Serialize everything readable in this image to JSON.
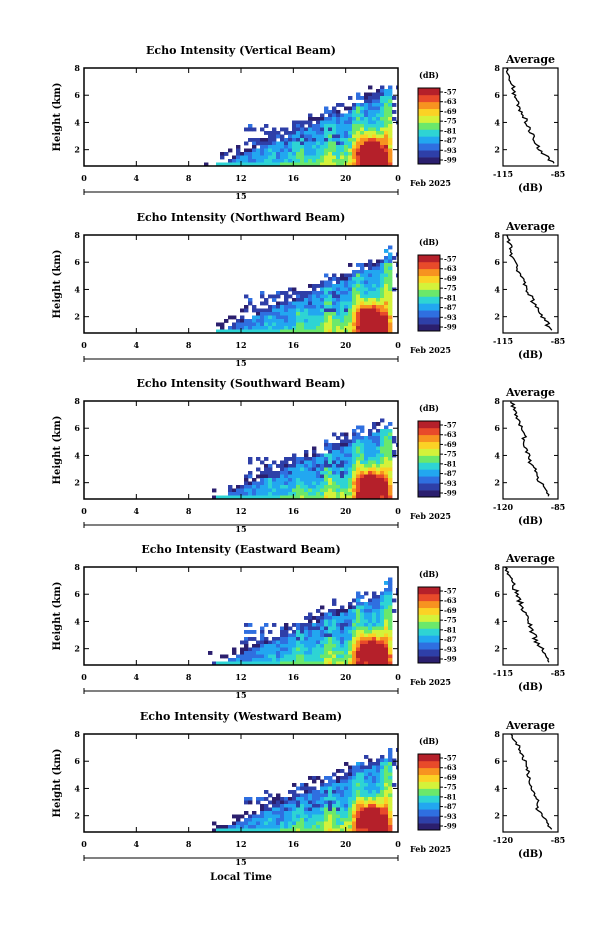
{
  "figure": {
    "xlabel": "Local Time",
    "colorbar_unit": "(dB)",
    "colorbar_ticks": [
      "-57",
      "-63",
      "-69",
      "-75",
      "-81",
      "-87",
      "-93",
      "-99"
    ],
    "colormap": [
      "#2b1f6e",
      "#2e3fa8",
      "#2f6fe0",
      "#22a7f0",
      "#2ed4d4",
      "#6be86b",
      "#d4f23a",
      "#fbd225",
      "#f79320",
      "#e84a2a",
      "#b5202a"
    ],
    "date_label": "Feb 2025"
  },
  "chart_data": [
    {
      "type": "heatmap",
      "title": "Echo Intensity (Vertical Beam)",
      "ylabel": "Height (km)",
      "x_ticks": [
        "0",
        "4",
        "8",
        "12",
        "16",
        "20",
        "0"
      ],
      "x_day_tick": "15",
      "xlim": [
        0,
        24
      ],
      "ylim": [
        0.8,
        8
      ],
      "y_ticks": [
        "2",
        "4",
        "6",
        "8"
      ],
      "profile": {
        "title": "Average",
        "xlabel": "(dB)",
        "x_ticks": [
          "-115",
          "-85"
        ],
        "xlim": [
          -115,
          -85
        ],
        "y": [
          1,
          1.5,
          2,
          2.5,
          3,
          3.5,
          4,
          4.5,
          5,
          5.5,
          6,
          6.5,
          7,
          7.5,
          8
        ],
        "x": [
          -88,
          -91,
          -95,
          -97,
          -98,
          -101,
          -102,
          -104,
          -106,
          -107,
          -109,
          -109,
          -110,
          -112,
          -113
        ]
      }
    },
    {
      "type": "heatmap",
      "title": "Echo Intensity (Northward Beam)",
      "ylabel": "Height (km)",
      "x_ticks": [
        "0",
        "4",
        "8",
        "12",
        "16",
        "20",
        "0"
      ],
      "x_day_tick": "15",
      "xlim": [
        0,
        24
      ],
      "ylim": [
        0.8,
        8
      ],
      "y_ticks": [
        "2",
        "4",
        "6",
        "8"
      ],
      "profile": {
        "title": "Average",
        "xlabel": "(dB)",
        "x_ticks": [
          "-115",
          "-85"
        ],
        "xlim": [
          -115,
          -85
        ],
        "y": [
          1,
          1.5,
          2,
          2.5,
          3,
          3.5,
          4,
          4.5,
          5,
          5.5,
          6,
          6.5,
          7,
          7.5,
          8
        ],
        "x": [
          -89,
          -91,
          -94,
          -96,
          -98,
          -100,
          -102,
          -103,
          -105,
          -107,
          -108,
          -110,
          -111,
          -112,
          -113
        ]
      }
    },
    {
      "type": "heatmap",
      "title": "Echo Intensity (Southward Beam)",
      "ylabel": "Height (km)",
      "x_ticks": [
        "0",
        "4",
        "8",
        "12",
        "16",
        "20",
        "0"
      ],
      "x_day_tick": "15",
      "xlim": [
        0,
        24
      ],
      "ylim": [
        0.8,
        8
      ],
      "y_ticks": [
        "2",
        "4",
        "6",
        "8"
      ],
      "profile": {
        "title": "Average",
        "xlabel": "(dB)",
        "x_ticks": [
          "-120",
          "-85"
        ],
        "xlim": [
          -120,
          -85
        ],
        "y": [
          1,
          1.5,
          2,
          2.5,
          3,
          3.5,
          4,
          4.5,
          5,
          5.5,
          6,
          6.5,
          7,
          7.5,
          8
        ],
        "x": [
          -90,
          -93,
          -96,
          -99,
          -100,
          -103,
          -104,
          -105,
          -107,
          -106,
          -108,
          -110,
          -112,
          -113,
          -115
        ]
      }
    },
    {
      "type": "heatmap",
      "title": "Echo Intensity (Eastward Beam)",
      "ylabel": "Height (km)",
      "x_ticks": [
        "0",
        "4",
        "8",
        "12",
        "16",
        "20",
        "0"
      ],
      "x_day_tick": "15",
      "xlim": [
        0,
        24
      ],
      "ylim": [
        0.8,
        8
      ],
      "y_ticks": [
        "2",
        "4",
        "6",
        "8"
      ],
      "profile": {
        "title": "Average",
        "xlabel": "(dB)",
        "x_ticks": [
          "-115",
          "-85"
        ],
        "xlim": [
          -115,
          -85
        ],
        "y": [
          1,
          1.5,
          2,
          2.5,
          3,
          3.5,
          4,
          4.5,
          5,
          5.5,
          6,
          6.5,
          7,
          7.5,
          8
        ],
        "x": [
          -89,
          -91,
          -94,
          -97,
          -98,
          -100,
          -101,
          -103,
          -104,
          -106,
          -107,
          -109,
          -110,
          -112,
          -114
        ]
      }
    },
    {
      "type": "heatmap",
      "title": "Echo Intensity (Westward Beam)",
      "ylabel": "Height (km)",
      "x_ticks": [
        "0",
        "4",
        "8",
        "12",
        "16",
        "20",
        "0"
      ],
      "x_day_tick": "15",
      "xlim": [
        0,
        24
      ],
      "ylim": [
        0.8,
        8
      ],
      "y_ticks": [
        "2",
        "4",
        "6",
        "8"
      ],
      "profile": {
        "title": "Average",
        "xlabel": "(dB)",
        "x_ticks": [
          "-120",
          "-85"
        ],
        "xlim": [
          -120,
          -85
        ],
        "y": [
          1,
          1.5,
          2,
          2.5,
          3,
          3.5,
          4,
          4.5,
          5,
          5.5,
          6,
          6.5,
          7,
          7.5,
          8
        ],
        "x": [
          -89,
          -92,
          -95,
          -98,
          -97,
          -99,
          -101,
          -103,
          -104,
          -105,
          -106,
          -108,
          -110,
          -112,
          -115
        ]
      }
    }
  ]
}
